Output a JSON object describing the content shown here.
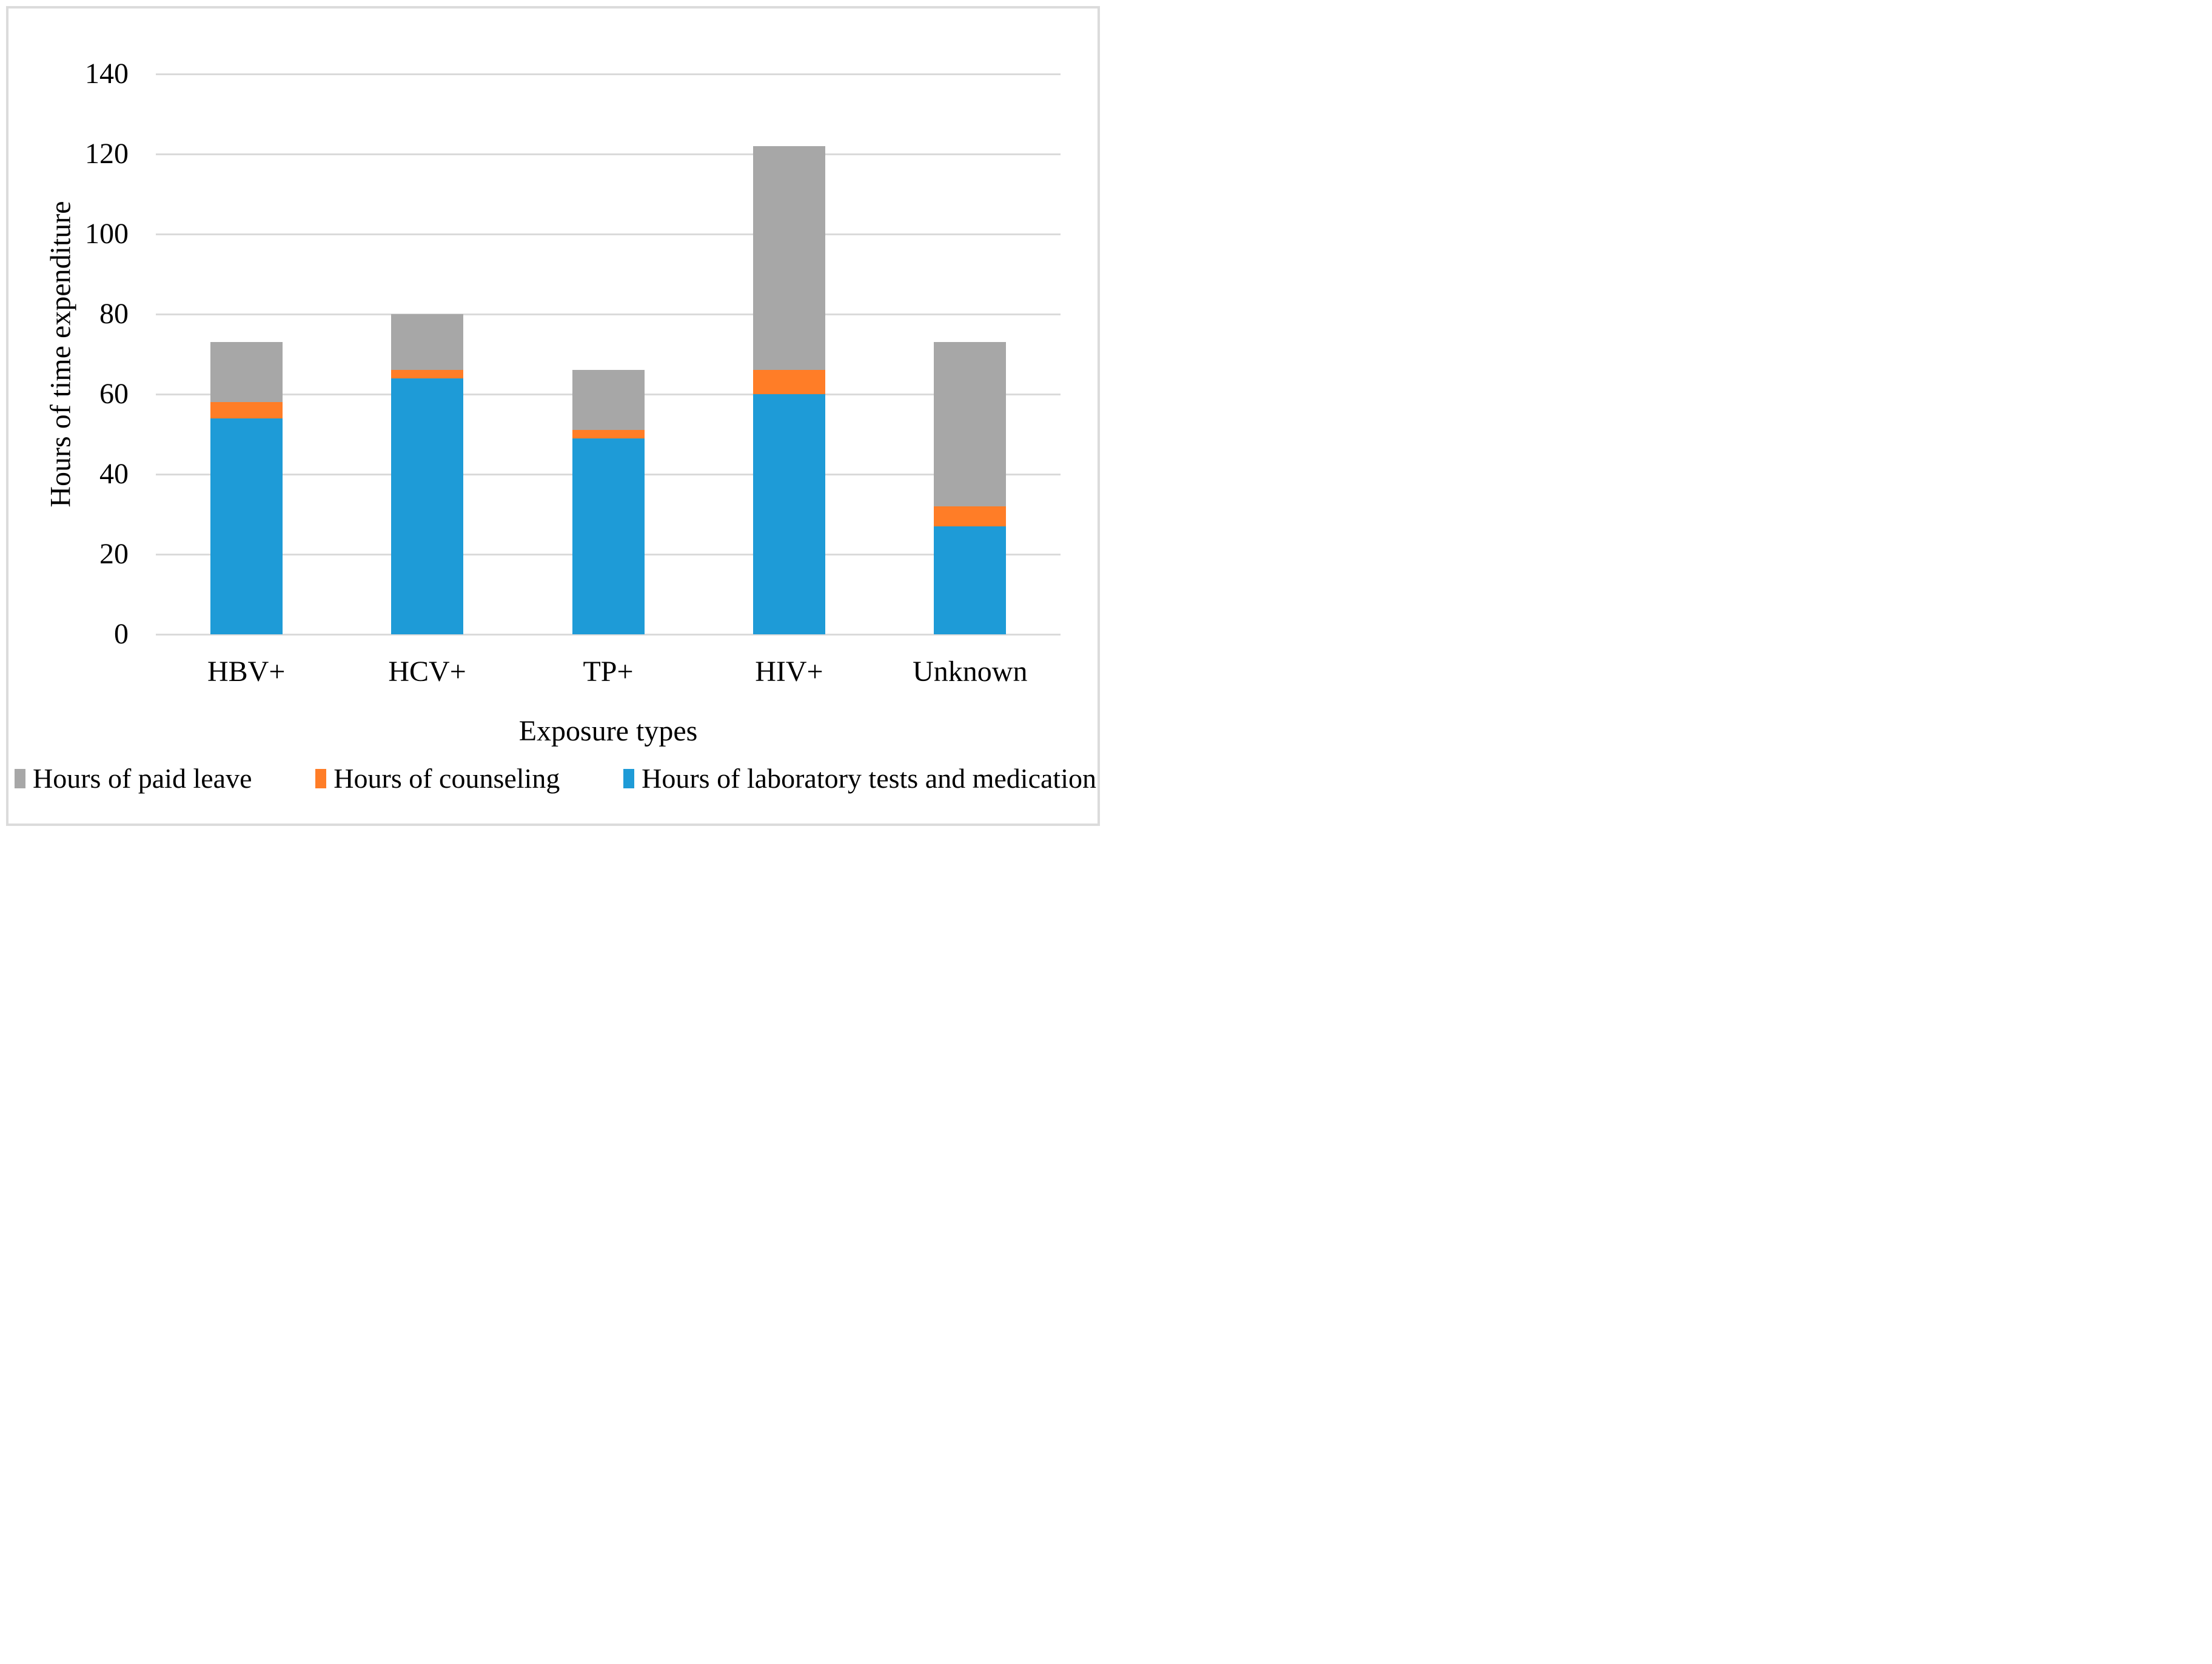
{
  "chart_data": {
    "type": "bar",
    "stacked": true,
    "categories": [
      "HBV+",
      "HCV+",
      "TP+",
      "HIV+",
      "Unknown"
    ],
    "series": [
      {
        "name": "Hours of laboratory tests and medication",
        "color": "#1E9BD7",
        "values": [
          54,
          64,
          49,
          60,
          27
        ]
      },
      {
        "name": "Hours of counseling",
        "color": "#FF7D27",
        "values": [
          4,
          2,
          2,
          6,
          5
        ]
      },
      {
        "name": "Hours of paid leave",
        "color": "#A7A7A7",
        "values": [
          15,
          14,
          15,
          56,
          41
        ]
      }
    ],
    "stack_totals": [
      73,
      80,
      66,
      122,
      73
    ],
    "xlabel": "Exposure types",
    "ylabel": "Hours of time expenditure",
    "ylim": [
      0,
      140
    ],
    "yticks": [
      0,
      20,
      40,
      60,
      80,
      100,
      120,
      140
    ],
    "grid": true,
    "gridline_color": "#DADADA",
    "figure_border_color": "#DBDBDB",
    "background": "#FFFFFF",
    "legend_position": "bottom",
    "legend_order": [
      "Hours of paid leave",
      "Hours of counseling",
      "Hours of laboratory tests and medication"
    ]
  }
}
